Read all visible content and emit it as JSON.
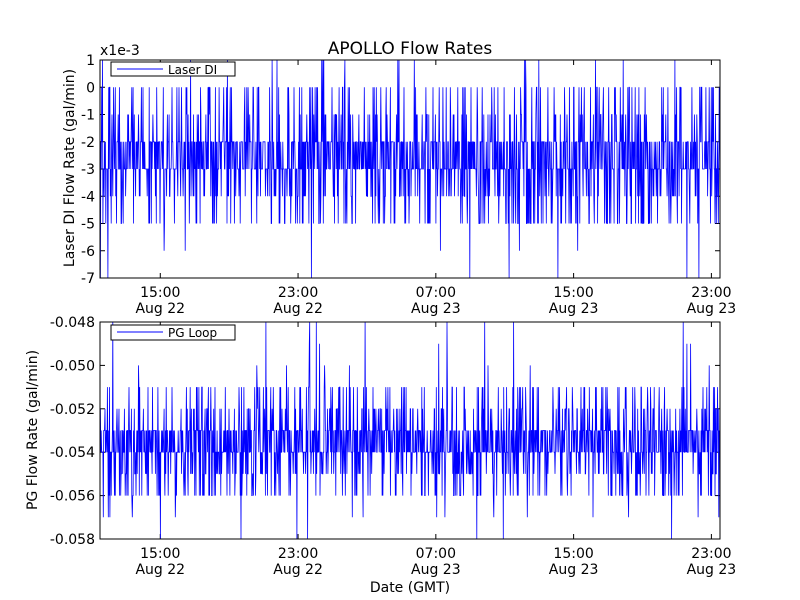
{
  "chart_data": [
    {
      "type": "line",
      "title": "APOLLO Flow Rates",
      "ylabel": "Laser DI Flow Rate (gal/min)",
      "scale_note": "x1e-3",
      "ylim": [
        -0.007,
        0.001
      ],
      "yticks": [
        0.001,
        0,
        -0.001,
        -0.002,
        -0.003,
        -0.004,
        -0.005,
        -0.006,
        -0.007
      ],
      "ytick_labels": [
        "1",
        "0",
        "-1",
        "-2",
        "-3",
        "-4",
        "-5",
        "-6",
        "-7"
      ],
      "xlim": [
        "2012-08-22 11:30",
        "2012-08-23 23:30"
      ],
      "xticks": [
        {
          "time": "2012-08-22 15:00",
          "label": [
            "15:00",
            "Aug 22"
          ]
        },
        {
          "time": "2012-08-22 23:00",
          "label": [
            "23:00",
            "Aug 22"
          ]
        },
        {
          "time": "2012-08-23 07:00",
          "label": [
            "07:00",
            "Aug 23"
          ]
        },
        {
          "time": "2012-08-23 15:00",
          "label": [
            "15:00",
            "Aug 23"
          ]
        },
        {
          "time": "2012-08-23 23:00",
          "label": [
            "23:00",
            "Aug 23"
          ]
        }
      ],
      "legend": {
        "loc": "upper left"
      },
      "series": [
        {
          "name": "Laser DI",
          "color": "#0000ff",
          "typical_range": [
            -0.003,
            -0.002
          ],
          "quantization_step": 0.001,
          "observed_min": -0.007,
          "observed_max": 0.001
        }
      ]
    },
    {
      "type": "line",
      "xlabel": "Date (GMT)",
      "ylabel": "PG Flow Rate (gal/min)",
      "ylim": [
        -0.058,
        -0.048
      ],
      "yticks": [
        -0.048,
        -0.05,
        -0.052,
        -0.054,
        -0.056,
        -0.058
      ],
      "ytick_labels": [
        "-0.048",
        "-0.050",
        "-0.052",
        "-0.054",
        "-0.056",
        "-0.058"
      ],
      "xlim": [
        "2012-08-22 11:30",
        "2012-08-23 23:30"
      ],
      "xticks": [
        {
          "time": "2012-08-22 15:00",
          "label": [
            "15:00",
            "Aug 22"
          ]
        },
        {
          "time": "2012-08-22 23:00",
          "label": [
            "23:00",
            "Aug 22"
          ]
        },
        {
          "time": "2012-08-23 07:00",
          "label": [
            "07:00",
            "Aug 23"
          ]
        },
        {
          "time": "2012-08-23 15:00",
          "label": [
            "15:00",
            "Aug 23"
          ]
        },
        {
          "time": "2012-08-23 23:00",
          "label": [
            "23:00",
            "Aug 23"
          ]
        }
      ],
      "legend": {
        "loc": "upper left"
      },
      "series": [
        {
          "name": "PG Loop",
          "color": "#0000ff",
          "typical_range": [
            -0.054,
            -0.053
          ],
          "quantization_step": 0.001,
          "observed_min": -0.058,
          "observed_max": -0.048
        }
      ]
    }
  ]
}
